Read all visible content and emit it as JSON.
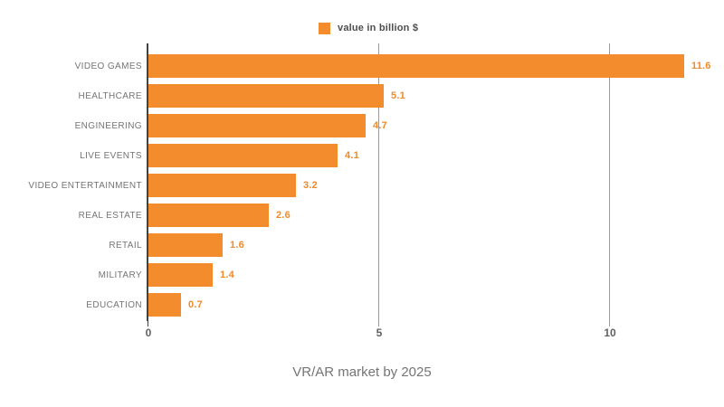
{
  "legend": {
    "label": "value in billion $",
    "swatch_color": "#F28C2D"
  },
  "chart_data": {
    "type": "bar",
    "orientation": "horizontal",
    "title": "VR/AR market by 2025",
    "legend": "value in billion $",
    "legend_position": "top-center",
    "categories": [
      "VIDEO GAMES",
      "HEALTHCARE",
      "ENGINEERING",
      "LIVE EVENTS",
      "VIDEO ENTERTAINMENT",
      "REAL ESTATE",
      "RETAIL",
      "MILITARY",
      "EDUCATION"
    ],
    "values": [
      11.6,
      5.1,
      4.7,
      4.1,
      3.2,
      2.6,
      1.6,
      1.4,
      0.7
    ],
    "value_labels": [
      "11.6",
      "5.1",
      "4.7",
      "4.1",
      "3.2",
      "2.6",
      "1.6",
      "1.4",
      "0.7"
    ],
    "xlabel": "",
    "ylabel": "",
    "x_ticks": [
      0,
      5,
      10
    ],
    "x_tick_labels": [
      "0",
      "5",
      "10"
    ],
    "xlim": [
      0,
      12.2
    ],
    "grid": true,
    "colors": {
      "bar": "#F28C2D",
      "value_label": "#ED8A2B",
      "category_label": "#757575",
      "tick_label": "#616161",
      "gridline": "#999999",
      "axis_line": "#424242",
      "title": "#757575",
      "background": "#ffffff"
    }
  },
  "title": {
    "text": "VR/AR market by 2025"
  }
}
